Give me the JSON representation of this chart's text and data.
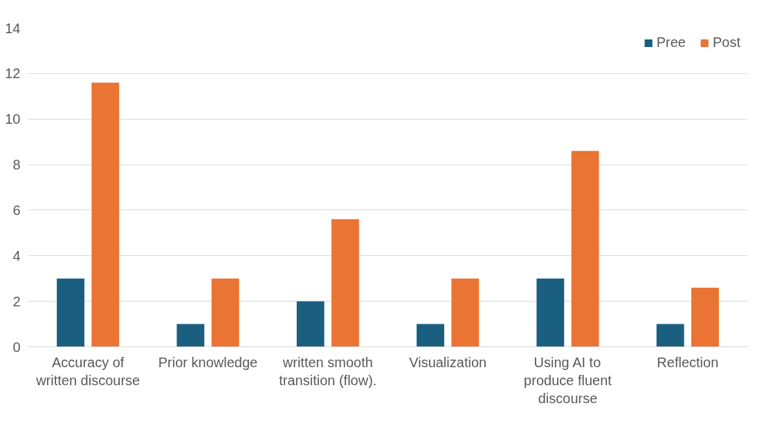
{
  "chart_data": {
    "type": "bar",
    "categories": [
      "Accuracy of written discourse",
      "Prior knowledge",
      "written smooth transition (flow).",
      "Visualization",
      "Using AI to produce fluent discourse",
      "Reflection"
    ],
    "series": [
      {
        "name": "Pree",
        "color": "#1a5f80",
        "values": [
          3,
          1,
          2,
          1,
          3,
          1
        ]
      },
      {
        "name": "Post",
        "color": "#ea7434",
        "values": [
          11.6,
          3,
          5.6,
          3,
          8.6,
          2.6
        ]
      }
    ],
    "ylim": [
      0,
      14
    ],
    "yticks": [
      0,
      2,
      4,
      6,
      8,
      10,
      12,
      14
    ],
    "grid": "y",
    "legend": "top right"
  }
}
